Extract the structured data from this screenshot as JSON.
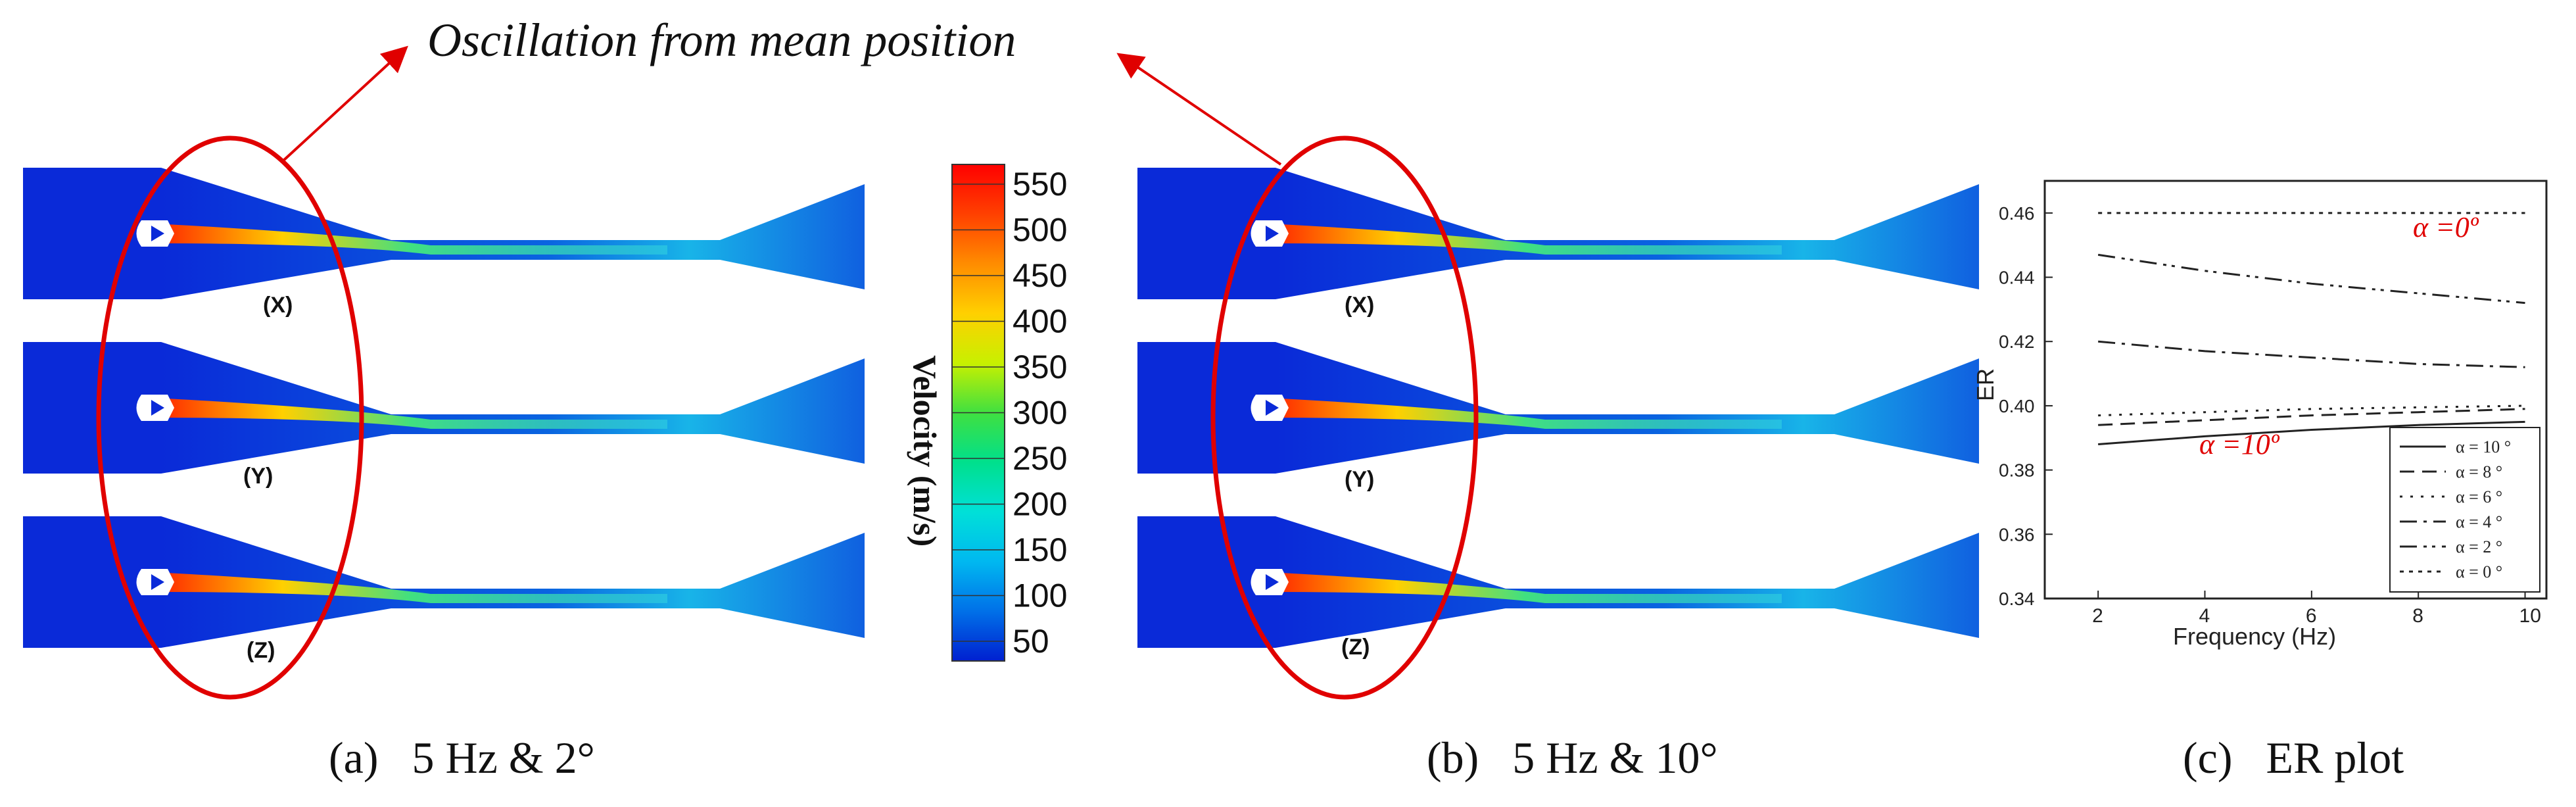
{
  "annotation": "Oscillation from mean position",
  "panels": {
    "a": {
      "caption": "(a)   5 Hz & 2°",
      "labels": [
        "(X)",
        "(Y)",
        "(Z)"
      ]
    },
    "b": {
      "caption": "(b)   5 Hz & 10°",
      "labels": [
        "(X)",
        "(Y)",
        "(Z)"
      ]
    },
    "c": {
      "caption": "(c)   ER plot"
    }
  },
  "colorbar": {
    "title": "Velocity (m/s)",
    "ticks": [
      "550",
      "500",
      "450",
      "400",
      "350",
      "300",
      "250",
      "200",
      "150",
      "100",
      "50"
    ],
    "colors": [
      "#ff0000",
      "#ff4000",
      "#ff8c00",
      "#ffd000",
      "#c8f000",
      "#40e040",
      "#00e08c",
      "#00e0d8",
      "#00b8f0",
      "#0070e8",
      "#0020d0"
    ]
  },
  "chart_data": {
    "type": "line",
    "xlabel": "Frequency (Hz)",
    "ylabel": "ER",
    "xlim": [
      1,
      10.4
    ],
    "ylim": [
      0.34,
      0.47
    ],
    "xticks": [
      "2",
      "4",
      "6",
      "8",
      "10"
    ],
    "yticks": [
      "0.34",
      "0.36",
      "0.38",
      "0.40",
      "0.42",
      "0.44",
      "0.46"
    ],
    "legend_position": "bottom-right",
    "annotations": [
      "α =0º",
      "α =10º"
    ],
    "series": [
      {
        "name": "α = 10 °",
        "x": [
          2,
          4,
          6,
          8,
          10
        ],
        "values": [
          0.388,
          0.3905,
          0.3925,
          0.394,
          0.395
        ]
      },
      {
        "name": "α = 8 °",
        "x": [
          2,
          4,
          6,
          8,
          10
        ],
        "values": [
          0.394,
          0.3955,
          0.397,
          0.398,
          0.399
        ]
      },
      {
        "name": "α = 6 °",
        "x": [
          2,
          4,
          6,
          8,
          10
        ],
        "values": [
          0.397,
          0.398,
          0.399,
          0.3995,
          0.4
        ]
      },
      {
        "name": "α = 4 °",
        "x": [
          2,
          4,
          6,
          8,
          10
        ],
        "values": [
          0.42,
          0.417,
          0.415,
          0.413,
          0.412
        ]
      },
      {
        "name": "α = 2 °",
        "x": [
          2,
          4,
          6,
          8,
          10
        ],
        "values": [
          0.447,
          0.442,
          0.438,
          0.435,
          0.432
        ]
      },
      {
        "name": "α = 0 °",
        "x": [
          2,
          4,
          6,
          8,
          10
        ],
        "values": [
          0.46,
          0.46,
          0.46,
          0.46,
          0.46
        ]
      }
    ]
  }
}
